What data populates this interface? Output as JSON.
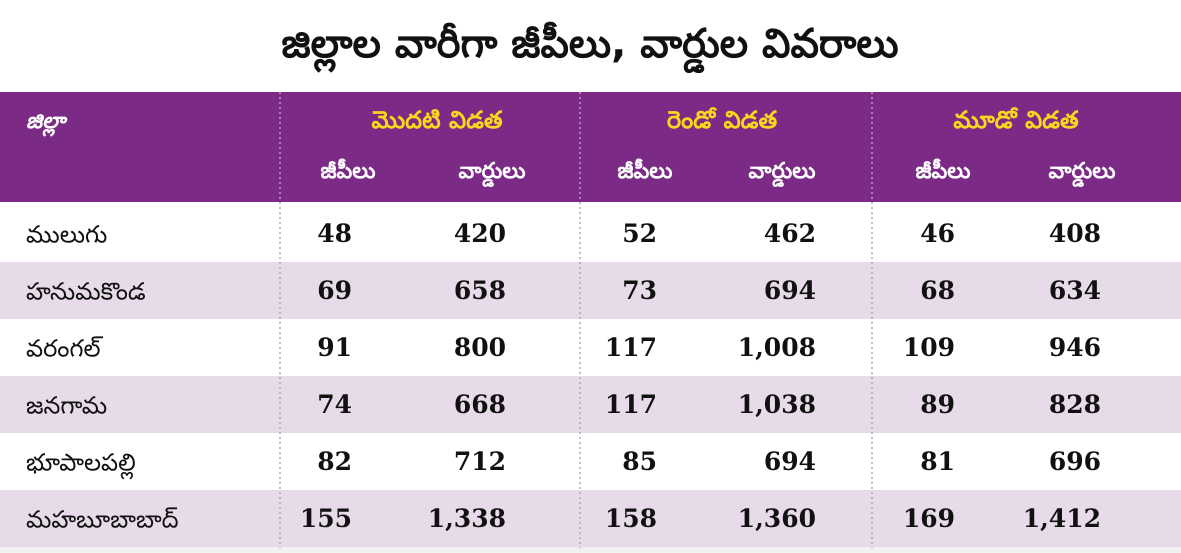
{
  "title": "జిల్లాల వారీగా జీపీలు, వార్డుల వివరాలు",
  "table": {
    "corner": "జిల్లా",
    "groups": [
      "మొదటి విడత",
      "రెండో విడత",
      "మూడో విడత"
    ],
    "subheaders": [
      "జీపీలు",
      "వార్డులు",
      "జీపీలు",
      "వార్డులు",
      "జీపీలు",
      "వార్డులు"
    ],
    "rows": [
      [
        "ములుగు",
        "48",
        "420",
        "52",
        "462",
        "46",
        "408"
      ],
      [
        "హనుమకొండ",
        "69",
        "658",
        "73",
        "694",
        "68",
        "634"
      ],
      [
        "వరంగల్",
        "91",
        "800",
        "117",
        "1,008",
        "109",
        "946"
      ],
      [
        "జనగామ",
        "74",
        "668",
        "117",
        "1,038",
        "89",
        "828"
      ],
      [
        "భూపాలపల్లి",
        "82",
        "712",
        "85",
        "694",
        "81",
        "696"
      ],
      [
        "మహబూబాబాద్",
        "155",
        "1,338",
        "158",
        "1,360",
        "169",
        "1,412"
      ]
    ]
  }
}
